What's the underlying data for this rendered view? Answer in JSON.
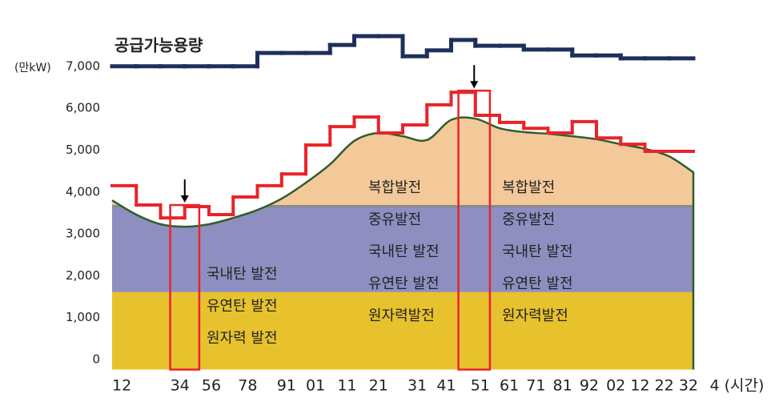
{
  "chart_data": {
    "type": "step-load",
    "y_unit": "(만kW)",
    "xlim": [
      0,
      27
    ],
    "ylim": [
      -200,
      7500
    ],
    "yticks": [
      0,
      {
        "value": 1000,
        "label": "1,000"
      },
      {
        "value": 2000,
        "label": "2,000"
      },
      {
        "value": 3000,
        "label": "3,000"
      },
      {
        "value": 4000,
        "label": "4,000"
      },
      {
        "value": 5000,
        "label": "5,000"
      },
      {
        "value": 6000,
        "label": "6,000"
      },
      {
        "value": 7000,
        "label": "7,000"
      }
    ],
    "xticks": [
      {
        "value": 0.4,
        "label": "12"
      },
      {
        "value": 2.8,
        "label": "34"
      },
      {
        "value": 4.1,
        "label": "56"
      },
      {
        "value": 5.6,
        "label": "78"
      },
      {
        "value": 7.2,
        "label": "91"
      },
      {
        "value": 8.4,
        "label": "01"
      },
      {
        "value": 9.7,
        "label": "11"
      },
      {
        "value": 11.0,
        "label": "21"
      },
      {
        "value": 12.6,
        "label": "31"
      },
      {
        "value": 13.8,
        "label": "41"
      },
      {
        "value": 15.2,
        "label": "51"
      },
      {
        "value": 16.4,
        "label": "61"
      },
      {
        "value": 17.5,
        "label": "71"
      },
      {
        "value": 18.6,
        "label": "81"
      },
      {
        "value": 19.7,
        "label": "92"
      },
      {
        "value": 20.8,
        "label": "02"
      },
      {
        "value": 21.8,
        "label": "12"
      },
      {
        "value": 22.8,
        "label": "22"
      },
      {
        "value": 23.8,
        "label": "32"
      },
      {
        "value": 25.8,
        "label": "4 (시간)"
      }
    ],
    "supply": {
      "name": "공급가능용량",
      "color": "#1f2f5c",
      "values": [
        7040,
        7040,
        7040,
        7040,
        7040,
        7040,
        7360,
        7360,
        7360,
        7550,
        7760,
        7760,
        7280,
        7420,
        7670,
        7530,
        7530,
        7440,
        7440,
        7300,
        7300,
        7230,
        7230,
        7230
      ]
    },
    "demand": {
      "color": "#e8242a",
      "values": [
        4190,
        3730,
        3420,
        3690,
        3500,
        3920,
        4190,
        4470,
        5160,
        5600,
        5830,
        5450,
        5640,
        6120,
        6420,
        5870,
        5700,
        5560,
        5450,
        5720,
        5330,
        5180,
        5010,
        5010
      ]
    },
    "load": {
      "color": "#f3c99a",
      "line_color": "#2e5e2c",
      "values": [
        3840,
        3500,
        3270,
        3210,
        3270,
        3420,
        3610,
        3880,
        4260,
        4700,
        5260,
        5450,
        5370,
        5280,
        5760,
        5790,
        5560,
        5470,
        5430,
        5370,
        5300,
        5180,
        5070,
        4890,
        4510
      ]
    },
    "bands": [
      {
        "from": -200,
        "to": 1650,
        "color": "#e7c22d"
      },
      {
        "from": 1650,
        "to": 3700,
        "color": "#8e8fc0"
      }
    ],
    "highlights": [
      [
        2.4,
        3.6
      ],
      [
        14.3,
        15.6
      ]
    ],
    "labels": [
      [
        "국내탄 발전",
        "유연탄 발전",
        "원자력 발전"
      ],
      [
        "복합발전",
        "중유발전",
        "국내탄 발전",
        "유연탄 발전",
        "원자력발전"
      ],
      [
        "복합발전",
        "중유발전",
        "국내탄 발전",
        "유연탄 발전",
        "원자력발전"
      ]
    ]
  }
}
